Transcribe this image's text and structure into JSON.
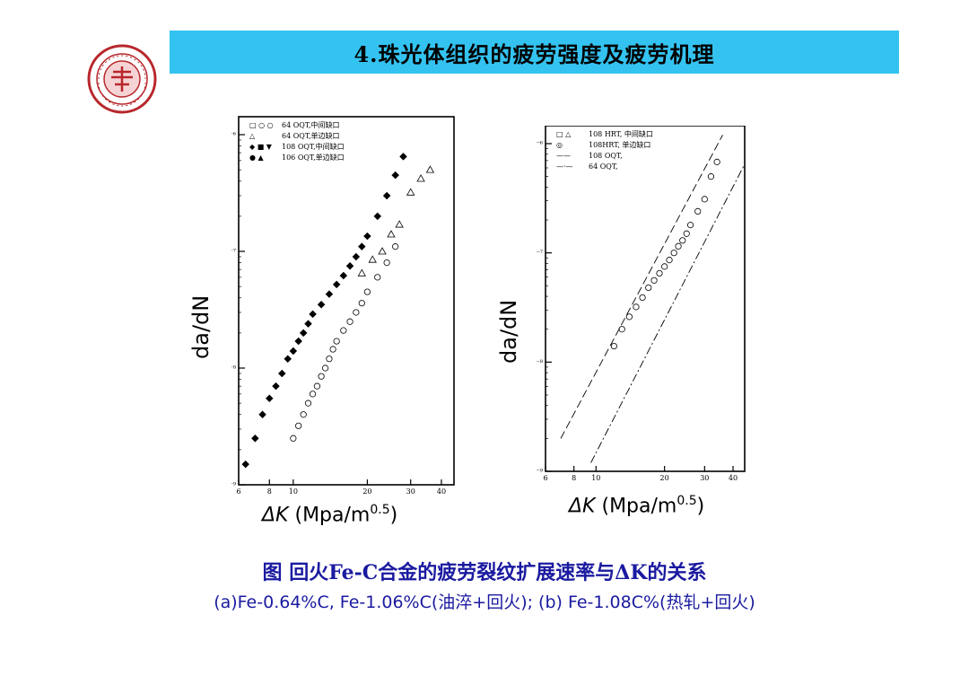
{
  "header": {
    "title": "4.珠光体组织的疲劳强度及疲劳机理"
  },
  "colors": {
    "title_bar": "#34c3f1",
    "caption": "#1a1aa0",
    "logo": "#b8272c"
  },
  "logo": {
    "icon": "university-seal-icon"
  },
  "caption": {
    "line1": "图 回火Fe-C合金的疲劳裂纹扩展速率与ΔK的关系",
    "line2": "(a)Fe-0.64%C, Fe-1.06%C(油淬+回火); (b) Fe-1.08C%(热轧+回火)"
  },
  "chart_data": [
    {
      "type": "scatter",
      "panel": "a",
      "ylabel": "da/dN",
      "xlabel_symbol": "ΔK",
      "xlabel_unit": "(Mpa/m",
      "xlabel_exp": "0.5",
      "xlabel_close": ")",
      "xscale": "log",
      "yscale": "log",
      "xlim": [
        6,
        45
      ],
      "ylim": [
        1e-09,
        1e-06
      ],
      "x_ticks": [
        "6",
        "8",
        "10",
        "20",
        "30",
        "40"
      ],
      "y_ticks": [
        "10⁻⁶",
        "10⁻⁷",
        "10⁻⁸",
        "10⁻⁹"
      ],
      "legend": [
        {
          "symbols": "□ ○ ○",
          "text": "64 OQT,中间缺口"
        },
        {
          "symbols": "△",
          "text": "64 OQT,单边缺口"
        },
        {
          "symbols": "◆ ■ ▼",
          "text": "108 OQT,中间缺口"
        },
        {
          "symbols": "● ▲",
          "text": "106 OQT,单边缺口"
        }
      ],
      "series": [
        {
          "name": "64 OQT",
          "marker": "open",
          "x": [
            10,
            10.5,
            11,
            11.5,
            12,
            12.5,
            13,
            13.5,
            14,
            14.5,
            15,
            16,
            17,
            18,
            19,
            20,
            22,
            24,
            26
          ],
          "y": [
            2.5e-09,
            3.2e-09,
            4e-09,
            5e-09,
            6e-09,
            7e-09,
            8.5e-09,
            1e-08,
            1.2e-08,
            1.45e-08,
            1.7e-08,
            2.1e-08,
            2.5e-08,
            3e-08,
            3.6e-08,
            4.5e-08,
            6e-08,
            8e-08,
            1.1e-07
          ]
        },
        {
          "name": "64 OQT 单边",
          "marker": "open-triangle",
          "x": [
            19,
            21,
            23,
            25,
            27,
            30,
            33,
            36
          ],
          "y": [
            6.5e-08,
            8.5e-08,
            1e-07,
            1.4e-07,
            1.7e-07,
            3.2e-07,
            4.2e-07,
            5e-07
          ]
        },
        {
          "name": "108 OQT",
          "marker": "filled",
          "x": [
            6.4,
            7,
            7.5,
            8,
            8.5,
            9,
            9.5,
            10,
            10.5,
            11,
            11.5,
            12,
            13,
            14,
            15,
            16,
            17,
            18,
            19,
            20,
            22,
            24,
            26,
            28
          ],
          "y": [
            1.5e-09,
            2.5e-09,
            4e-09,
            5.5e-09,
            7e-09,
            9e-09,
            1.2e-08,
            1.4e-08,
            1.7e-08,
            2e-08,
            2.4e-08,
            2.9e-08,
            3.5e-08,
            4.3e-08,
            5.2e-08,
            6.2e-08,
            7.5e-08,
            9e-08,
            1.1e-07,
            1.35e-07,
            2e-07,
            3e-07,
            4.5e-07,
            6.5e-07
          ]
        }
      ]
    },
    {
      "type": "scatter",
      "panel": "b",
      "ylabel": "da/dN",
      "xlabel_symbol": "ΔK",
      "xlabel_unit": "(Mpa/m",
      "xlabel_exp": "0.5",
      "xlabel_close": ")",
      "xscale": "log",
      "yscale": "log",
      "xlim": [
        6,
        45
      ],
      "ylim": [
        1e-09,
        1e-06
      ],
      "x_ticks": [
        "6",
        "8",
        "10",
        "20",
        "30",
        "40"
      ],
      "y_ticks": [
        "10⁻⁶",
        "10⁻⁷",
        "10⁻⁸",
        "10⁻⁹"
      ],
      "legend": [
        {
          "symbols": "□ △",
          "text": "108 HRT, 中间缺口"
        },
        {
          "symbols": "◎",
          "text": "108HRT, 单边缺口"
        },
        {
          "symbols": "——",
          "text": "108 OQT,"
        },
        {
          "symbols": "—·—",
          "text": "64 OQT,"
        }
      ],
      "series": [
        {
          "name": "108 HRT",
          "marker": "open",
          "x": [
            12,
            13,
            14,
            15,
            16,
            17,
            18,
            19,
            20,
            21,
            22,
            23,
            24,
            25,
            26,
            28,
            30,
            32,
            34
          ],
          "y": [
            1.4e-08,
            2e-08,
            2.6e-08,
            3.2e-08,
            3.9e-08,
            4.8e-08,
            5.6e-08,
            6.5e-08,
            7.5e-08,
            8.6e-08,
            1e-07,
            1.15e-07,
            1.3e-07,
            1.5e-07,
            1.8e-07,
            2.4e-07,
            3.1e-07,
            5e-07,
            6.8e-07
          ]
        },
        {
          "name": "108 OQT",
          "marker": "line-dash",
          "x": [
            7,
            36
          ],
          "y": [
            2e-09,
            1.2e-06
          ]
        },
        {
          "name": "64 OQT",
          "marker": "line-dashdot",
          "x": [
            9.5,
            45
          ],
          "y": [
            1.2e-09,
            6.5e-07
          ]
        }
      ]
    }
  ]
}
